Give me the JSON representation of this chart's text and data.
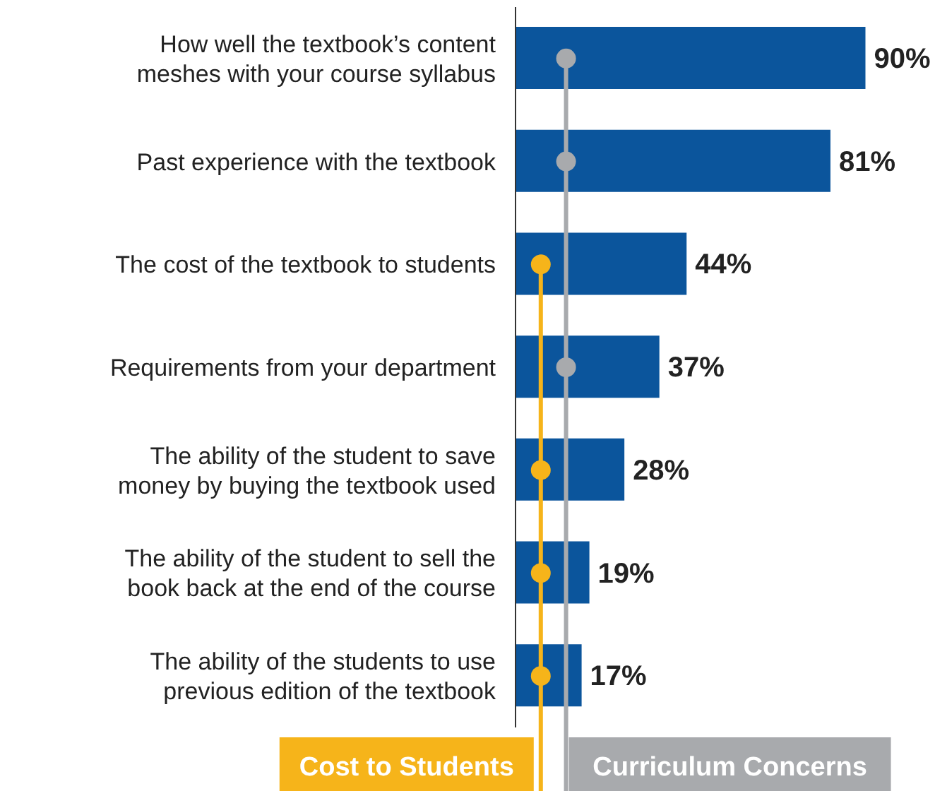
{
  "chart_data": {
    "type": "bar",
    "orientation": "horizontal",
    "categories": [
      "How well the textbook’s content\nmeshes with your course syllabus",
      "Past experience with the textbook",
      "The cost of the textbook to students",
      "Requirements from your department",
      "The ability of the student to save\nmoney by buying the textbook used",
      "The ability of the student to sell the\nbook back at the end of the course",
      "The ability of the students to use\nprevious edition of the textbook"
    ],
    "series": [
      {
        "color": "#0b559c",
        "values": [
          90,
          81,
          44,
          37,
          28,
          19,
          17
        ],
        "value_labels": [
          "90%",
          "81%",
          "44%",
          "37%",
          "28%",
          "19%",
          "17%"
        ]
      },
      {
        "type": "scatter",
        "name": "Cost to Students",
        "color": "#f6b41a",
        "values": [
          null,
          null,
          6.5,
          null,
          6.5,
          6.5,
          6.5
        ]
      },
      {
        "type": "scatter",
        "name": "Curriculum Concerns",
        "color": "#a8aaad",
        "values": [
          13,
          13,
          null,
          13,
          null,
          null,
          null
        ]
      }
    ],
    "legend": "bottom",
    "tick_labels": "y",
    "marker": "circle"
  }
}
